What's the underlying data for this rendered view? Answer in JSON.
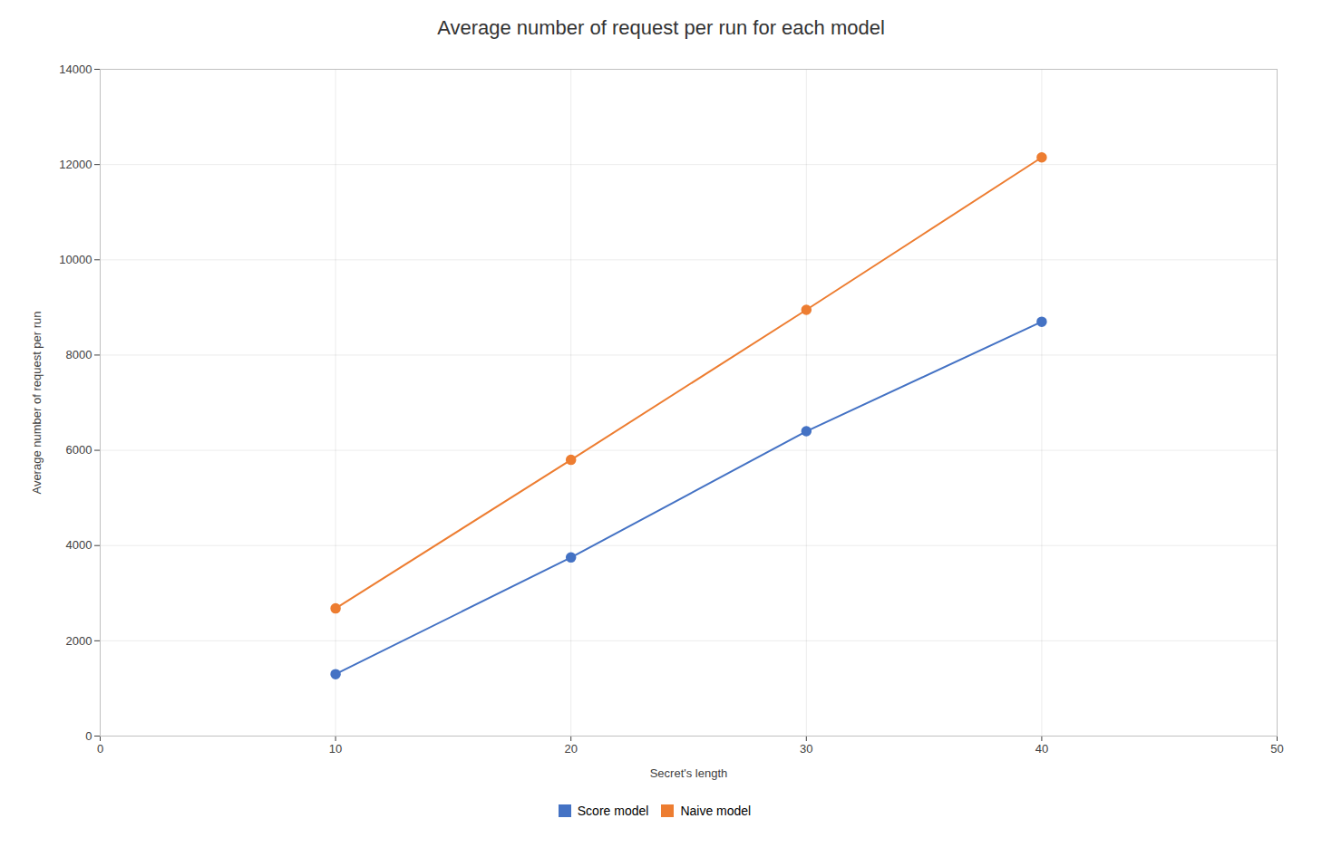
{
  "chart_data": {
    "type": "line",
    "title": "Average number of request per run for each model",
    "xlabel": "Secret's length",
    "ylabel": "Average number of request per run",
    "x": [
      10,
      20,
      30,
      40
    ],
    "series": [
      {
        "name": "Score model",
        "color": "#4472C4",
        "marker": "circle",
        "values": [
          1300,
          3750,
          6400,
          8700
        ]
      },
      {
        "name": "Naive model",
        "color": "#ED7D31",
        "marker": "circle",
        "values": [
          2680,
          5800,
          8950,
          12150
        ]
      }
    ],
    "xlim": [
      0,
      50
    ],
    "ylim": [
      0,
      14000
    ],
    "xticks": [
      0,
      10,
      20,
      30,
      40,
      50
    ],
    "yticks": [
      0,
      2000,
      4000,
      6000,
      8000,
      10000,
      12000,
      14000
    ],
    "grid": true,
    "legend": "bottom"
  }
}
